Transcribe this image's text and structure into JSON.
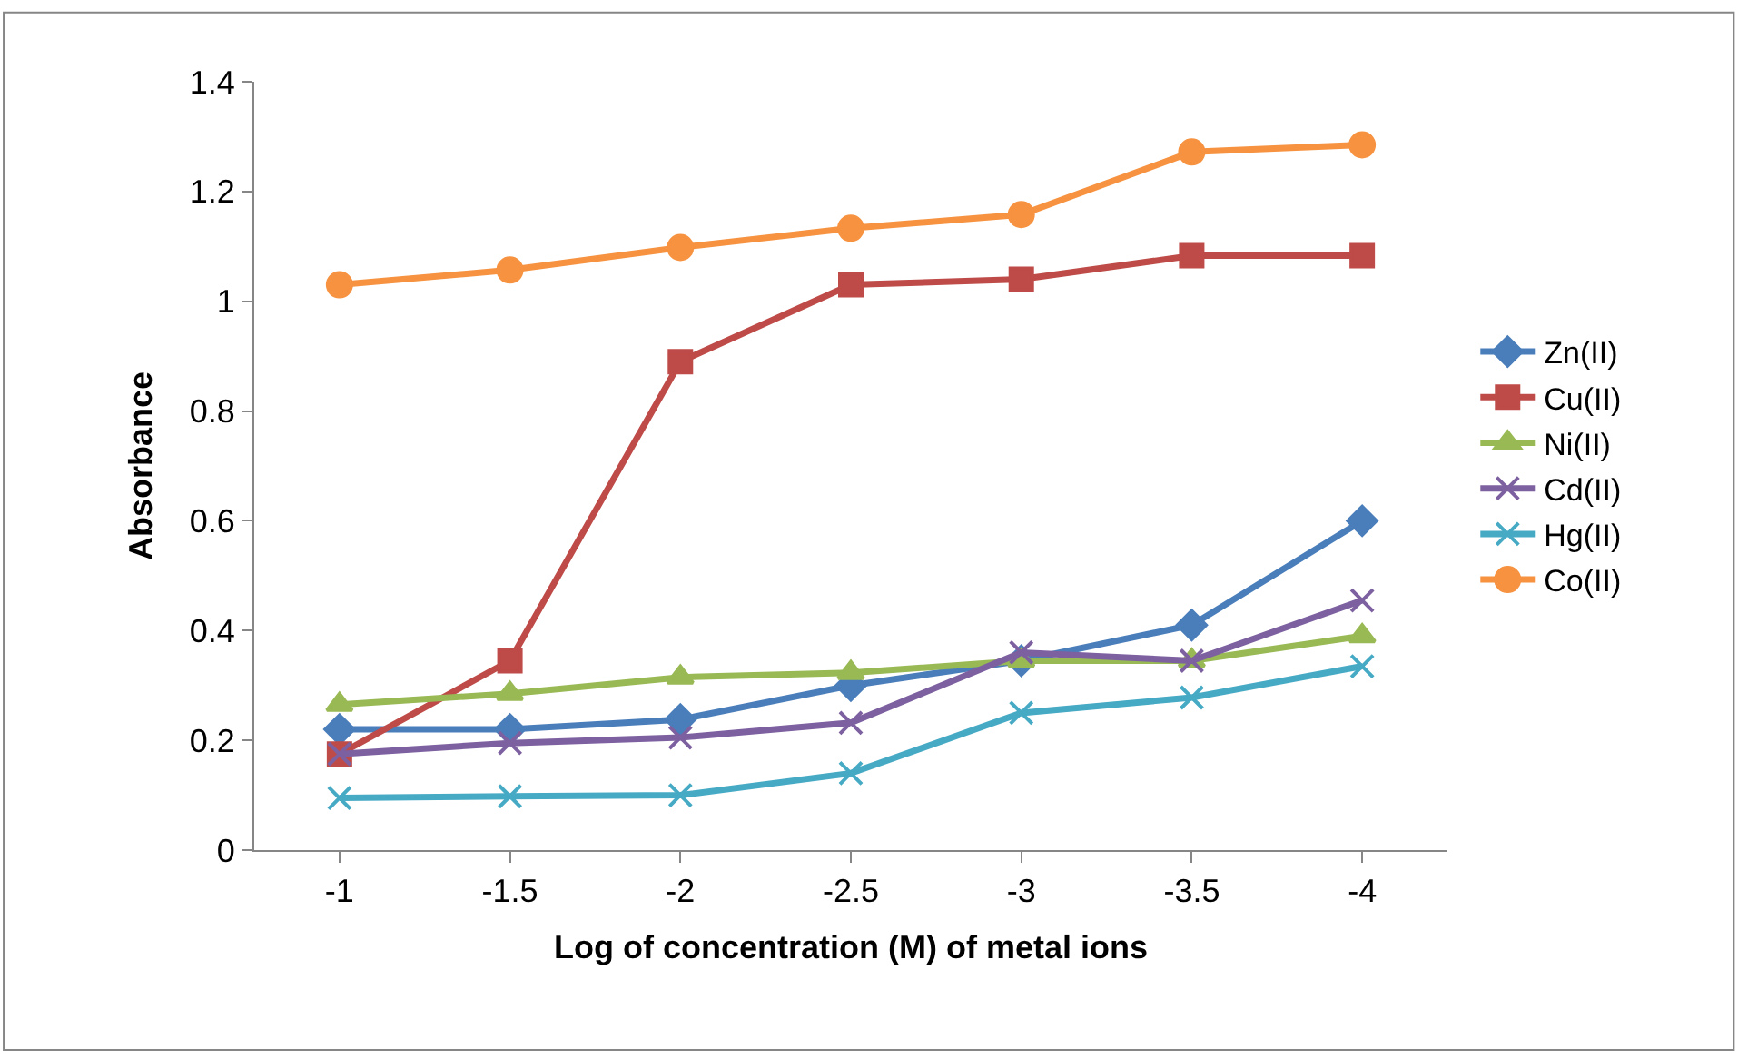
{
  "chart_data": {
    "type": "line",
    "xlabel": "Log of concentration (M) of metal ions",
    "ylabel": "Absorbance",
    "categories": [
      "-1",
      "-1.5",
      "-2",
      "-2.5",
      "-3",
      "-3.5",
      "-4"
    ],
    "ylim": [
      0,
      1.4
    ],
    "yticks": [
      0,
      0.2,
      0.4,
      0.6,
      0.8,
      1,
      1.2,
      1.4
    ],
    "legend": "right",
    "line_style": "solid",
    "series": [
      {
        "name": "Zn(II)",
        "color": "#4a7ebb",
        "marker": "diamond",
        "values": [
          0.22,
          0.22,
          0.238,
          0.3,
          0.345,
          0.41,
          0.6
        ]
      },
      {
        "name": "Cu(II)",
        "color": "#be4b48",
        "marker": "square",
        "values": [
          0.175,
          0.345,
          0.89,
          1.03,
          1.04,
          1.083,
          1.083
        ]
      },
      {
        "name": "Ni(II)",
        "color": "#98b954",
        "marker": "triangle",
        "values": [
          0.265,
          0.285,
          0.315,
          0.323,
          0.345,
          0.345,
          0.39
        ]
      },
      {
        "name": "Cd(II)",
        "color": "#7d60a0",
        "marker": "cross",
        "values": [
          0.175,
          0.195,
          0.205,
          0.232,
          0.36,
          0.345,
          0.455
        ]
      },
      {
        "name": "Hg(II)",
        "color": "#46aac5",
        "marker": "cross",
        "values": [
          0.095,
          0.098,
          0.1,
          0.14,
          0.25,
          0.278,
          0.335
        ]
      },
      {
        "name": "Co(II)",
        "color": "#f69240",
        "marker": "circle",
        "values": [
          1.03,
          1.057,
          1.098,
          1.133,
          1.158,
          1.272,
          1.285
        ]
      }
    ]
  }
}
